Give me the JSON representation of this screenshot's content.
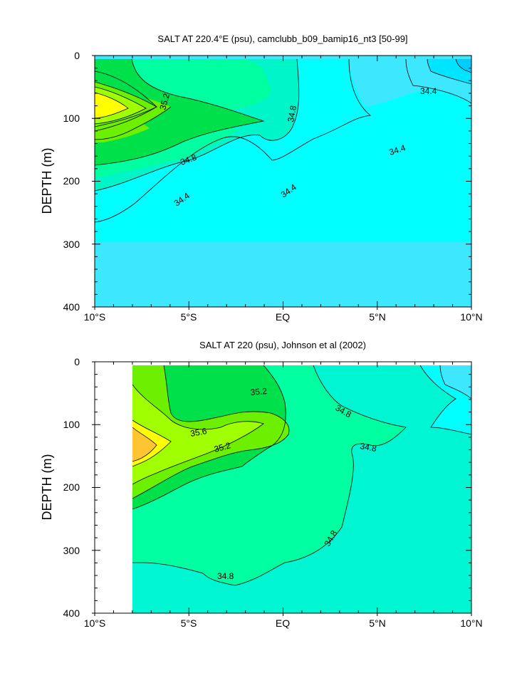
{
  "chart_data": [
    {
      "type": "contour",
      "title": "SALT AT 220.4°E (psu), camclubb_b09_bamip16_nt3 [50-99]",
      "ylabel": "DEPTH (m)",
      "xlabel": "",
      "x_ticks": [
        "10°S",
        "5°S",
        "EQ",
        "5°N",
        "10°N"
      ],
      "y_ticks": [
        "0",
        "100",
        "200",
        "300",
        "400"
      ],
      "xlim": [
        -10,
        10
      ],
      "ylim": [
        0,
        400
      ],
      "y_reversed": true,
      "contour_labels": [
        "35.2",
        "34.8",
        "34.8",
        "34.4",
        "34.4",
        "34.4",
        "34.4"
      ],
      "colors": {
        "s34_0": "#00ccff",
        "s34_2": "#00e5ff",
        "s34_4": "#3de8ff",
        "s34_6": "#00ffff",
        "s34_8": "#00f5c8",
        "s35_0": "#00ffa0",
        "s35_2": "#00e04a",
        "s35_4": "#6cf000",
        "s35_6": "#a0ff00",
        "s35_8": "#ffff00"
      }
    },
    {
      "type": "contour",
      "title": "SALT AT 220 (psu), Johnson et al (2002)",
      "ylabel": "DEPTH (m)",
      "xlabel": "",
      "x_ticks": [
        "10°S",
        "5°S",
        "EQ",
        "5°N",
        "10°N"
      ],
      "y_ticks": [
        "0",
        "100",
        "200",
        "300",
        "400"
      ],
      "xlim": [
        -10,
        10
      ],
      "ylim": [
        0,
        400
      ],
      "y_reversed": true,
      "contour_labels": [
        "35.2",
        "35.6",
        "35.2",
        "34.8",
        "34.8",
        "34.8",
        "34.8"
      ],
      "colors": {
        "s34_4": "#3de8ff",
        "s34_6": "#00ffff",
        "s34_8": "#00f5d2",
        "s35_0": "#00ffa0",
        "s35_2": "#00e04a",
        "s35_4": "#6cf000",
        "s35_6": "#a0ff00",
        "s35_8": "#ffff00",
        "s36_0": "#ffc432"
      }
    }
  ]
}
